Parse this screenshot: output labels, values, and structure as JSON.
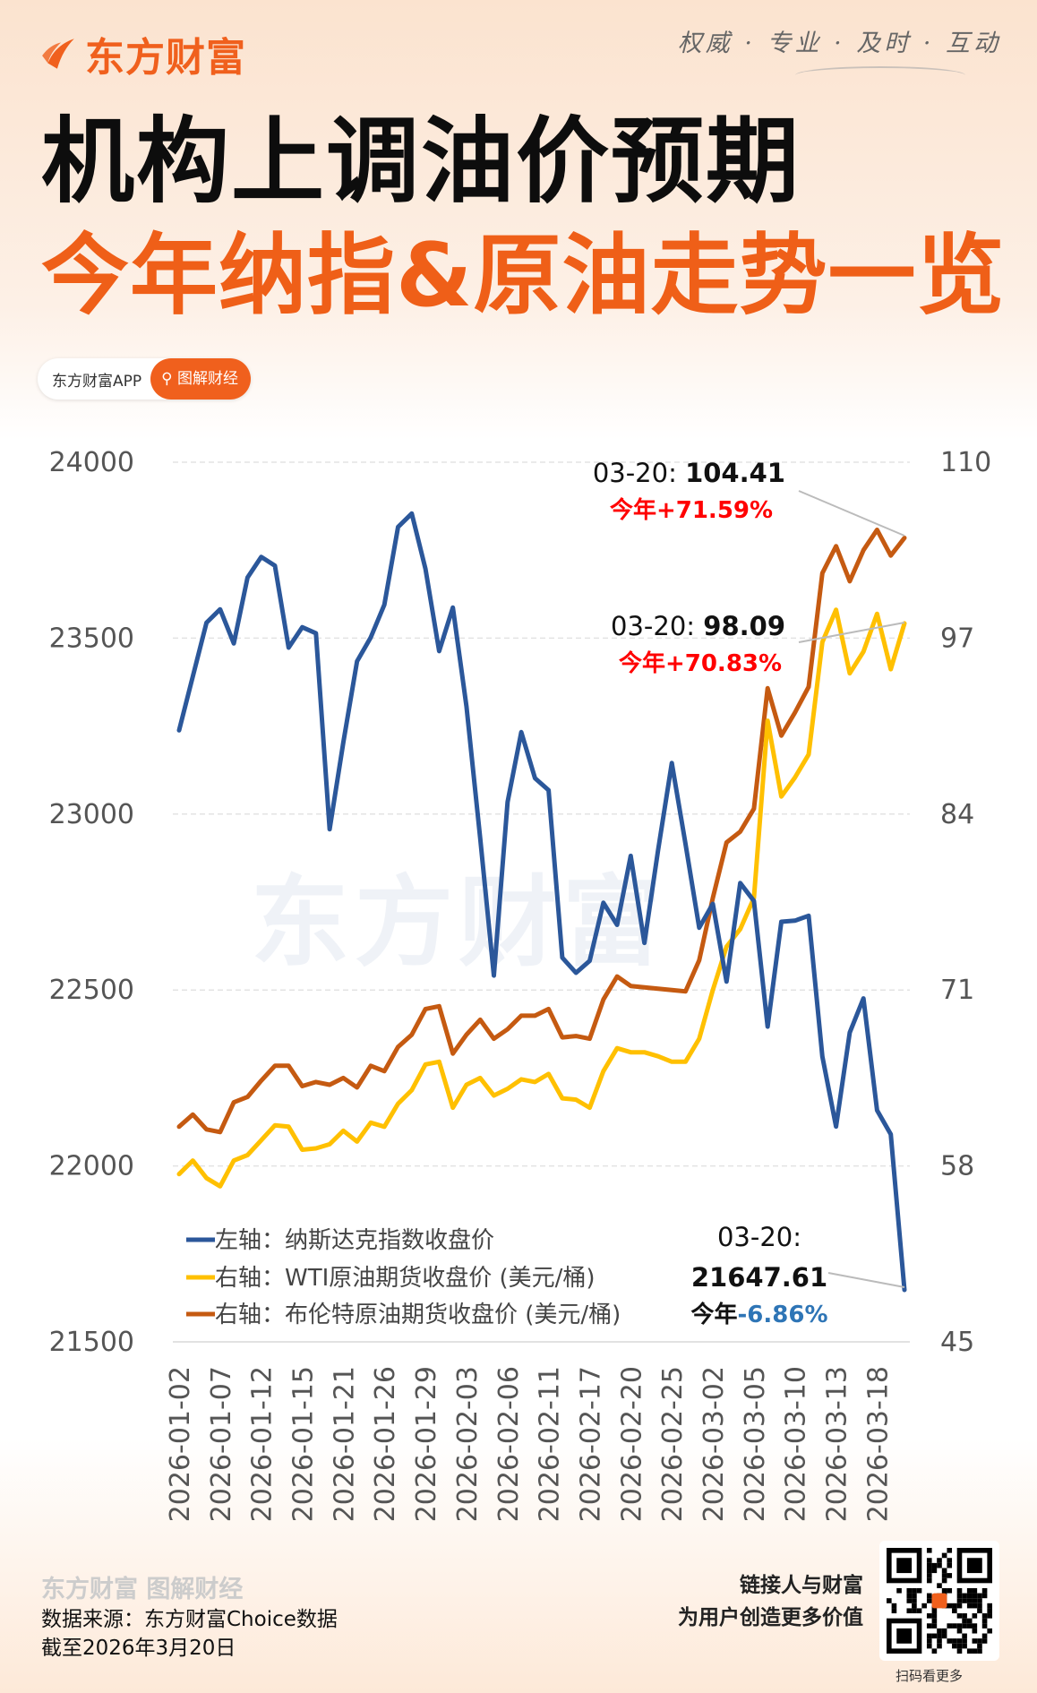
{
  "brand": {
    "name": "东方财富",
    "slogan": "权威 · 专业 · 及时 · 互动",
    "watermark": "东方财富"
  },
  "title": {
    "line1": "机构上调油价预期",
    "line2": "今年纳指&原油走势一览"
  },
  "badge": {
    "app": "东方财富APP",
    "tag": "图解财经"
  },
  "colors": {
    "nasdaq": "#2B579A",
    "wti": "#FFC000",
    "brent": "#C55A11",
    "up": "#FF0000",
    "down": "#2E75B6",
    "accent": "#F0601D"
  },
  "chart_data": {
    "type": "line",
    "left_axis": {
      "ylim": [
        21500,
        24000
      ],
      "ticks": [
        "24000",
        "23500",
        "23000",
        "22500",
        "22000",
        "21500"
      ]
    },
    "right_axis": {
      "ylim": [
        45,
        110
      ],
      "ticks": [
        "110",
        "97",
        "84",
        "71",
        "58",
        "45"
      ]
    },
    "grid": true,
    "legend_placement": "bottom-left",
    "x_tick_labels": [
      "2026-01-02",
      "2026-01-07",
      "2026-01-12",
      "2026-01-15",
      "2026-01-21",
      "2026-01-26",
      "2026-01-29",
      "2026-02-03",
      "2026-02-06",
      "2026-02-11",
      "2026-02-17",
      "2026-02-20",
      "2026-02-25",
      "2026-03-02",
      "2026-03-05",
      "2026-03-10",
      "2026-03-13",
      "2026-03-18"
    ],
    "x": [
      "2026-01-02",
      "2026-01-05",
      "2026-01-06",
      "2026-01-07",
      "2026-01-08",
      "2026-01-09",
      "2026-01-12",
      "2026-01-13",
      "2026-01-14",
      "2026-01-15",
      "2026-01-16",
      "2026-01-20",
      "2026-01-21",
      "2026-01-22",
      "2026-01-23",
      "2026-01-26",
      "2026-01-27",
      "2026-01-28",
      "2026-01-29",
      "2026-01-30",
      "2026-02-02",
      "2026-02-03",
      "2026-02-04",
      "2026-02-05",
      "2026-02-06",
      "2026-02-09",
      "2026-02-10",
      "2026-02-11",
      "2026-02-12",
      "2026-02-13",
      "2026-02-17",
      "2026-02-18",
      "2026-02-19",
      "2026-02-20",
      "2026-02-23",
      "2026-02-24",
      "2026-02-25",
      "2026-02-26",
      "2026-02-27",
      "2026-03-02",
      "2026-03-03",
      "2026-03-04",
      "2026-03-05",
      "2026-03-06",
      "2026-03-09",
      "2026-03-10",
      "2026-03-11",
      "2026-03-12",
      "2026-03-13",
      "2026-03-16",
      "2026-03-17",
      "2026-03-18",
      "2026-03-19",
      "2026-03-20"
    ],
    "series": [
      {
        "name": "左轴：纳斯达克指数收盘价",
        "axis": "left",
        "color": "#2B579A",
        "values": [
          23238,
          23391,
          23544,
          23582,
          23485,
          23672,
          23731,
          23706,
          23473,
          23531,
          23514,
          22957,
          23204,
          23434,
          23502,
          23595,
          23816,
          23854,
          23697,
          23463,
          23587,
          23306,
          22932,
          22541,
          23034,
          23233,
          23102,
          23068,
          22592,
          22549,
          22583,
          22748,
          22685,
          22881,
          22634,
          22898,
          23145,
          22915,
          22677,
          22745,
          22524,
          22804,
          22753,
          22396,
          22694,
          22697,
          22711,
          22311,
          22112,
          22379,
          22476,
          22158,
          22090,
          21647.61
        ]
      },
      {
        "name": "右轴：WTI原油期货收盘价 (美元/桶)",
        "axis": "right",
        "color": "#FFC000",
        "values": [
          57.4,
          58.4,
          57.1,
          56.5,
          58.4,
          58.8,
          59.9,
          61.0,
          60.9,
          59.2,
          59.3,
          59.6,
          60.6,
          59.8,
          61.2,
          60.9,
          62.6,
          63.6,
          65.5,
          65.7,
          62.3,
          64.0,
          64.5,
          63.2,
          63.7,
          64.4,
          64.2,
          64.8,
          63.0,
          62.9,
          62.3,
          65.0,
          66.7,
          66.4,
          66.4,
          66.1,
          65.7,
          65.7,
          67.4,
          71.0,
          74.2,
          75.5,
          77.8,
          90.9,
          85.3,
          86.7,
          88.4,
          96.7,
          99.1,
          94.4,
          96.0,
          98.8,
          94.7,
          98.09
        ]
      },
      {
        "name": "右轴：布伦特原油期货收盘价 (美元/桶)",
        "axis": "right",
        "color": "#C55A11",
        "values": [
          60.9,
          61.8,
          60.7,
          60.5,
          62.7,
          63.1,
          64.3,
          65.4,
          65.4,
          63.9,
          64.2,
          64.0,
          64.5,
          63.8,
          65.4,
          65.0,
          66.8,
          67.7,
          69.6,
          69.8,
          66.3,
          67.7,
          68.8,
          67.4,
          68.1,
          69.1,
          69.1,
          69.6,
          67.5,
          67.6,
          67.4,
          70.3,
          72.0,
          71.3,
          71.2,
          71.1,
          71.0,
          70.9,
          73.2,
          77.8,
          81.9,
          82.7,
          84.4,
          93.3,
          89.8,
          91.5,
          93.4,
          101.8,
          103.8,
          101.2,
          103.5,
          105.0,
          103.1,
          104.41
        ]
      }
    ],
    "legend": [
      "左轴：纳斯达克指数收盘价",
      "右轴：WTI原油期货收盘价 (美元/桶)",
      "右轴：布伦特原油期货收盘价 (美元/桶)"
    ],
    "annotations": {
      "brent": {
        "date": "03-20: ",
        "value": "104.41",
        "pct_prefix": "今年",
        "pct": "+71.59%"
      },
      "wti": {
        "date": "03-20: ",
        "value": "98.09",
        "pct_prefix": "今年",
        "pct": "+70.83%"
      },
      "nasdaq": {
        "date": "03-20:",
        "value": "21647.61",
        "pct_prefix": "今年",
        "pct": "-6.86%"
      }
    }
  },
  "footer": {
    "logo_text": "东方财富 图解财经",
    "source": "数据来源：东方财富Choice数据",
    "as_of": "截至2026年3月20日",
    "slogan1": "链接人与财富",
    "slogan2": "为用户创造更多价值",
    "qr_caption": "扫码看更多"
  }
}
